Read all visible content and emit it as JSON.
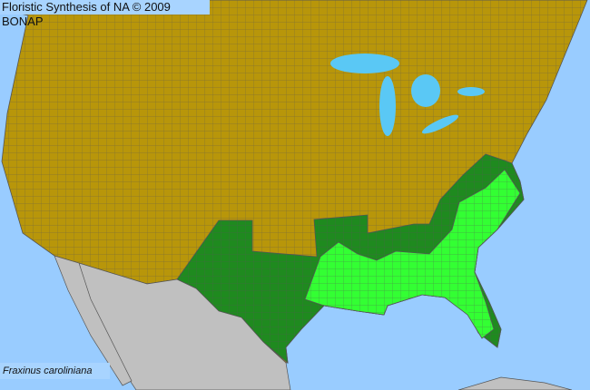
{
  "header": {
    "title": "Floristic Synthesis of NA © 2009 BONAP"
  },
  "map": {
    "species": "Fraxinus caroliniana",
    "colors": {
      "ocean": "#99ccff",
      "lakes": "#5ac8f5",
      "absent_region": "#b8960a",
      "present_state": "#1f8a1f",
      "present_county": "#33ff33",
      "outside_area": "#c0c0c0",
      "boundaries": "#555555"
    }
  }
}
